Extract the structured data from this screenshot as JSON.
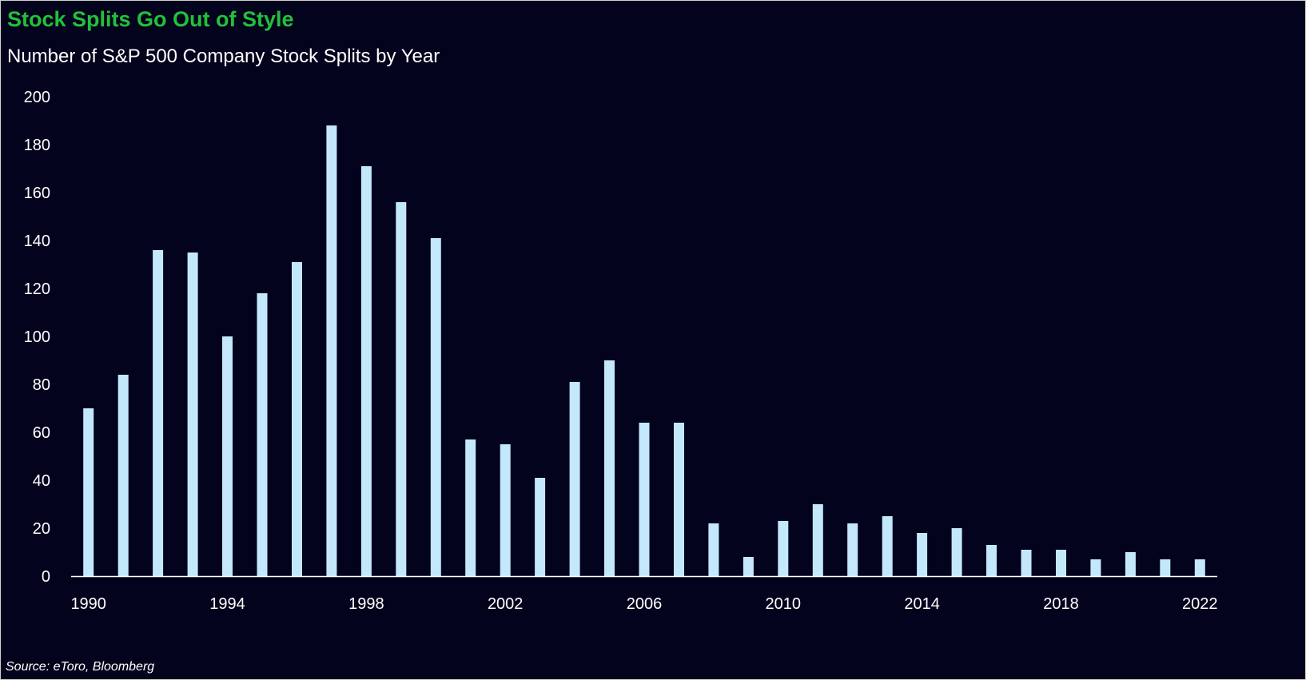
{
  "colors": {
    "background": "#03031d",
    "title": "#22c13a",
    "bar": "#c4e8fb",
    "axis": "#ffffff",
    "text": "#ffffff"
  },
  "footer": {
    "source": "Source: eToro, Bloomberg"
  },
  "chart_data": {
    "type": "bar",
    "title": "Stock Splits Go Out of Style",
    "subtitle": "Number of S&P 500 Company Stock Splits by Year",
    "xlabel": "",
    "ylabel": "",
    "ylim": [
      0,
      200
    ],
    "yticks": [
      0,
      20,
      40,
      60,
      80,
      100,
      120,
      140,
      160,
      180,
      200
    ],
    "xtick_labels": [
      "1990",
      "1994",
      "1998",
      "2002",
      "2006",
      "2010",
      "2014",
      "2018",
      "2022"
    ],
    "grid": false,
    "legend": "none",
    "categories": [
      "1990",
      "1991",
      "1992",
      "1993",
      "1994",
      "1995",
      "1996",
      "1997",
      "1998",
      "1999",
      "2000",
      "2001",
      "2002",
      "2003",
      "2004",
      "2005",
      "2006",
      "2007",
      "2008",
      "2009",
      "2010",
      "2011",
      "2012",
      "2013",
      "2014",
      "2015",
      "2016",
      "2017",
      "2018",
      "2019",
      "2020",
      "2021",
      "2022"
    ],
    "values": [
      70,
      84,
      136,
      135,
      100,
      118,
      131,
      188,
      171,
      156,
      141,
      57,
      55,
      41,
      81,
      90,
      64,
      64,
      22,
      8,
      23,
      30,
      22,
      25,
      18,
      20,
      13,
      11,
      11,
      7,
      10,
      7,
      7
    ]
  }
}
